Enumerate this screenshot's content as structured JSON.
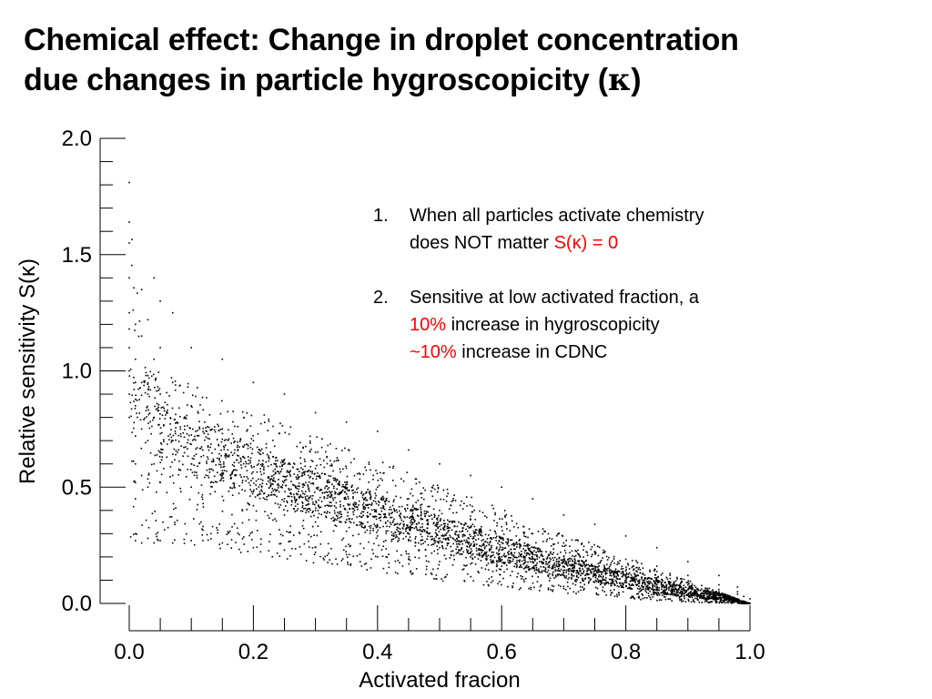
{
  "title": {
    "line1": "Chemical effect: Change in droplet concentration",
    "line2_pre": "due changes in particle hygroscopicity (",
    "kappa": "κ",
    "line2_post": ")"
  },
  "notes": [
    {
      "number": "1.",
      "line1": "When all particles activate chemistry",
      "line2_pre": "does NOT matter ",
      "line2_red": "S(κ) = 0"
    },
    {
      "number": "2.",
      "line1": "Sensitive at low activated fraction, a",
      "line2_red": "10%",
      "line2_post": " increase in hygroscopicity",
      "line3_red": "~10%",
      "line3_post": " increase in CDNC"
    }
  ],
  "colors": {
    "highlight": "#ff0000",
    "points": "#000000"
  },
  "chart_data": {
    "type": "scatter",
    "title": "",
    "xlabel": "Activated fracion",
    "ylabel": "Relative sensitivity S(κ)",
    "xlim": [
      0.0,
      1.0
    ],
    "ylim": [
      0.0,
      2.0
    ],
    "x_ticks": [
      "0.0",
      "0.2",
      "0.4",
      "0.6",
      "0.8",
      "1.0"
    ],
    "y_ticks": [
      "0.0",
      "0.5",
      "1.0",
      "1.5",
      "2.0"
    ],
    "grid": false,
    "legend": "none",
    "series": [
      {
        "values_note": "dense point cloud; representative sample of points",
        "points": [
          [
            0.0,
            1.81
          ],
          [
            0.0,
            1.64
          ],
          [
            0.0,
            1.55
          ],
          [
            0.0,
            1.4
          ],
          [
            0.0,
            1.25
          ],
          [
            0.0,
            1.18
          ],
          [
            0.0,
            1.1
          ],
          [
            0.0,
            1.0
          ],
          [
            0.0,
            0.9
          ],
          [
            0.0,
            0.8
          ],
          [
            0.01,
            1.2
          ],
          [
            0.01,
            1.05
          ],
          [
            0.01,
            0.95
          ],
          [
            0.01,
            0.85
          ],
          [
            0.01,
            0.72
          ],
          [
            0.01,
            0.6
          ],
          [
            0.01,
            0.45
          ],
          [
            0.01,
            0.3
          ],
          [
            0.01,
            0.27
          ],
          [
            0.02,
            1.35
          ],
          [
            0.02,
            1.15
          ],
          [
            0.02,
            0.95
          ],
          [
            0.02,
            0.75
          ],
          [
            0.02,
            0.55
          ],
          [
            0.02,
            0.26
          ],
          [
            0.03,
            1.22
          ],
          [
            0.03,
            0.98
          ],
          [
            0.03,
            0.7
          ],
          [
            0.03,
            0.5
          ],
          [
            0.03,
            0.28
          ],
          [
            0.04,
            1.4
          ],
          [
            0.04,
            1.05
          ],
          [
            0.04,
            0.8
          ],
          [
            0.04,
            0.6
          ],
          [
            0.04,
            0.26
          ],
          [
            0.05,
            1.3
          ],
          [
            0.05,
            1.1
          ],
          [
            0.05,
            0.9
          ],
          [
            0.05,
            0.65
          ],
          [
            0.05,
            0.52
          ],
          [
            0.05,
            0.27
          ],
          [
            0.07,
            1.25
          ],
          [
            0.07,
            0.95
          ],
          [
            0.07,
            0.7
          ],
          [
            0.07,
            0.55
          ],
          [
            0.07,
            0.26
          ],
          [
            0.1,
            1.1
          ],
          [
            0.1,
            0.85
          ],
          [
            0.1,
            0.6
          ],
          [
            0.1,
            0.5
          ],
          [
            0.1,
            0.27
          ],
          [
            0.15,
            1.05
          ],
          [
            0.15,
            0.75
          ],
          [
            0.15,
            0.55
          ],
          [
            0.15,
            0.46
          ],
          [
            0.15,
            0.26
          ],
          [
            0.2,
            0.95
          ],
          [
            0.2,
            0.7
          ],
          [
            0.2,
            0.48
          ],
          [
            0.2,
            0.42
          ],
          [
            0.2,
            0.24
          ],
          [
            0.25,
            0.9
          ],
          [
            0.25,
            0.62
          ],
          [
            0.25,
            0.45
          ],
          [
            0.25,
            0.38
          ],
          [
            0.25,
            0.23
          ],
          [
            0.3,
            0.82
          ],
          [
            0.3,
            0.58
          ],
          [
            0.3,
            0.4
          ],
          [
            0.3,
            0.35
          ],
          [
            0.3,
            0.22
          ],
          [
            0.35,
            0.78
          ],
          [
            0.35,
            0.52
          ],
          [
            0.35,
            0.36
          ],
          [
            0.35,
            0.31
          ],
          [
            0.35,
            0.21
          ],
          [
            0.4,
            0.74
          ],
          [
            0.4,
            0.5
          ],
          [
            0.4,
            0.33
          ],
          [
            0.4,
            0.29
          ],
          [
            0.4,
            0.2
          ],
          [
            0.45,
            0.66
          ],
          [
            0.45,
            0.45
          ],
          [
            0.45,
            0.3
          ],
          [
            0.45,
            0.27
          ],
          [
            0.45,
            0.19
          ],
          [
            0.5,
            0.6
          ],
          [
            0.5,
            0.4
          ],
          [
            0.5,
            0.28
          ],
          [
            0.5,
            0.24
          ],
          [
            0.5,
            0.18
          ],
          [
            0.55,
            0.55
          ],
          [
            0.55,
            0.36
          ],
          [
            0.55,
            0.25
          ],
          [
            0.55,
            0.22
          ],
          [
            0.55,
            0.17
          ],
          [
            0.6,
            0.5
          ],
          [
            0.6,
            0.33
          ],
          [
            0.6,
            0.23
          ],
          [
            0.6,
            0.2
          ],
          [
            0.6,
            0.16
          ],
          [
            0.65,
            0.45
          ],
          [
            0.65,
            0.3
          ],
          [
            0.65,
            0.21
          ],
          [
            0.65,
            0.18
          ],
          [
            0.65,
            0.15
          ],
          [
            0.7,
            0.38
          ],
          [
            0.7,
            0.26
          ],
          [
            0.7,
            0.19
          ],
          [
            0.7,
            0.16
          ],
          [
            0.7,
            0.13
          ],
          [
            0.75,
            0.34
          ],
          [
            0.75,
            0.22
          ],
          [
            0.75,
            0.16
          ],
          [
            0.75,
            0.14
          ],
          [
            0.75,
            0.12
          ],
          [
            0.8,
            0.29
          ],
          [
            0.8,
            0.19
          ],
          [
            0.8,
            0.14
          ],
          [
            0.8,
            0.12
          ],
          [
            0.8,
            0.1
          ],
          [
            0.85,
            0.24
          ],
          [
            0.85,
            0.16
          ],
          [
            0.85,
            0.11
          ],
          [
            0.85,
            0.1
          ],
          [
            0.85,
            0.08
          ],
          [
            0.9,
            0.18
          ],
          [
            0.9,
            0.12
          ],
          [
            0.9,
            0.09
          ],
          [
            0.9,
            0.08
          ],
          [
            0.9,
            0.06
          ],
          [
            0.95,
            0.12
          ],
          [
            0.95,
            0.08
          ],
          [
            0.95,
            0.06
          ],
          [
            0.95,
            0.05
          ],
          [
            0.95,
            0.04
          ],
          [
            0.98,
            0.07
          ],
          [
            0.98,
            0.05
          ],
          [
            0.98,
            0.04
          ],
          [
            0.99,
            0.03
          ],
          [
            1.0,
            0.02
          ],
          [
            1.0,
            0.0
          ]
        ]
      }
    ]
  }
}
